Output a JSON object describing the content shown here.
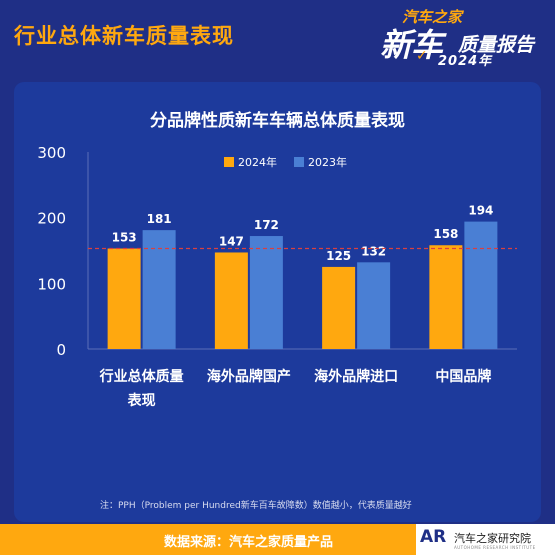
{
  "header": {
    "title": "行业总体新车质量表现"
  },
  "logo": {
    "line1": "汽车之家",
    "line2": "新车",
    "line2b": "质量报告",
    "line3": "2024年",
    "tick": "✓"
  },
  "chart_data": {
    "type": "bar",
    "title": "分品牌性质新车车辆总体质量表现",
    "categories": [
      [
        "行业总体质量",
        "表现"
      ],
      [
        "海外品牌国产"
      ],
      [
        "海外品牌进口"
      ],
      [
        "中国品牌"
      ]
    ],
    "series": [
      {
        "name": "2024年",
        "values": [
          153,
          147,
          125,
          158
        ],
        "color": "#ffa80f"
      },
      {
        "name": "2023年",
        "values": [
          181,
          172,
          132,
          194
        ],
        "color": "#4a7fd4"
      }
    ],
    "ylim": [
      0,
      300
    ],
    "yticks": [
      "0",
      "100",
      "200",
      "300"
    ],
    "reference_line": 153,
    "reference_color": "#d94040",
    "legend": "top"
  },
  "footnote": "注：PPH（Problem per Hundred新车百车故障数）数值越小，代表质量越好",
  "source": "数据来源：汽车之家质量产品",
  "research": {
    "icon": "AR",
    "name": "汽车之家研究院",
    "sub": "AUTOHOME RESEARCH INSTITUTE"
  }
}
